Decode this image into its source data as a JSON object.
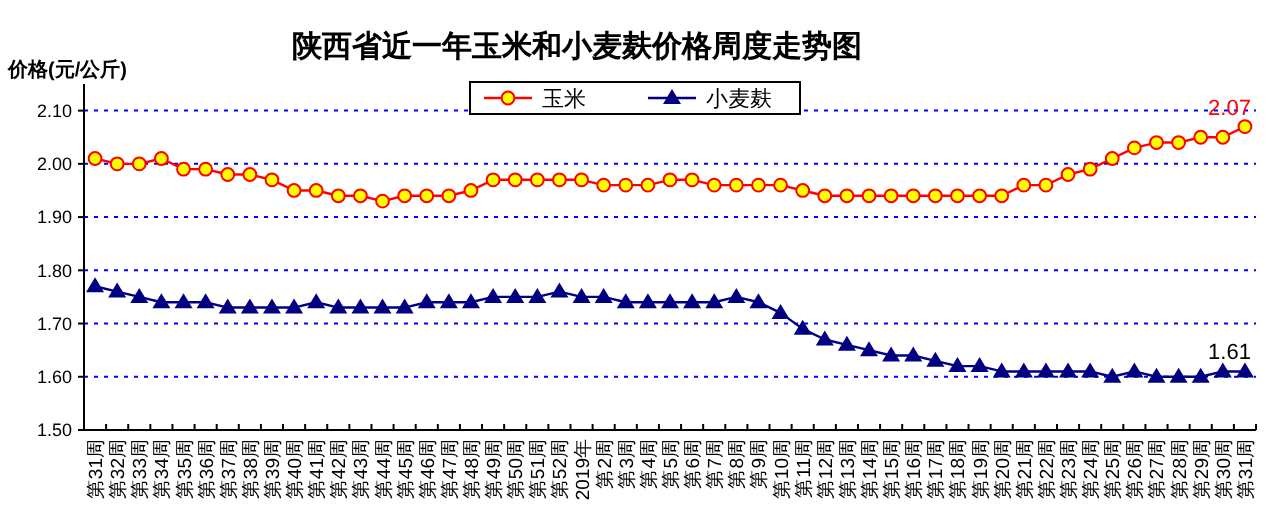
{
  "chart_data": {
    "type": "line",
    "title": "陕西省近一年玉米和小麦麸价格周度走势图",
    "ylabel": "价格(元/公斤)",
    "categories": [
      "第31周",
      "第32周",
      "第33周",
      "第34周",
      "第35周",
      "第36周",
      "第37周",
      "第38周",
      "第39周",
      "第40周",
      "第41周",
      "第42周",
      "第43周",
      "第44周",
      "第45周",
      "第46周",
      "第47周",
      "第48周",
      "第49周",
      "第50周",
      "第51周",
      "第52周",
      "2019年",
      "第2周",
      "第3周",
      "第4周",
      "第5周",
      "第6周",
      "第7周",
      "第8周",
      "第9周",
      "第10周",
      "第11周",
      "第12周",
      "第13周",
      "第14周",
      "第15周",
      "第16周",
      "第17周",
      "第18周",
      "第19周",
      "第20周",
      "第21周",
      "第22周",
      "第23周",
      "第24周",
      "第25周",
      "第26周",
      "第27周",
      "第28周",
      "第29周",
      "第30周",
      "第31周"
    ],
    "series": [
      {
        "name": "玉米",
        "color": "#ff0000",
        "marker": "circle",
        "values": [
          2.01,
          2.0,
          2.0,
          2.01,
          1.99,
          1.99,
          1.98,
          1.98,
          1.97,
          1.95,
          1.95,
          1.94,
          1.94,
          1.93,
          1.94,
          1.94,
          1.94,
          1.95,
          1.97,
          1.97,
          1.97,
          1.97,
          1.97,
          1.96,
          1.96,
          1.96,
          1.97,
          1.97,
          1.96,
          1.96,
          1.96,
          1.96,
          1.95,
          1.94,
          1.94,
          1.94,
          1.94,
          1.94,
          1.94,
          1.94,
          1.94,
          1.94,
          1.96,
          1.96,
          1.98,
          1.99,
          2.01,
          2.03,
          2.04,
          2.04,
          2.05,
          2.05,
          2.07
        ],
        "value_labels": [
          null,
          null,
          null,
          null,
          null,
          null,
          null,
          null,
          null,
          null,
          null,
          null,
          null,
          null,
          null,
          null,
          null,
          null,
          null,
          null,
          null,
          null,
          null,
          null,
          null,
          null,
          null,
          null,
          null,
          null,
          null,
          null,
          null,
          null,
          null,
          null,
          null,
          null,
          null,
          null,
          null,
          null,
          null,
          null,
          null,
          null,
          null,
          null,
          null,
          null,
          null,
          null,
          "2.07"
        ]
      },
      {
        "name": "小麦麸",
        "color": "#000080",
        "marker": "triangle",
        "values": [
          1.77,
          1.76,
          1.75,
          1.74,
          1.74,
          1.74,
          1.73,
          1.73,
          1.73,
          1.73,
          1.74,
          1.73,
          1.73,
          1.73,
          1.73,
          1.74,
          1.74,
          1.74,
          1.75,
          1.75,
          1.75,
          1.76,
          1.75,
          1.75,
          1.74,
          1.74,
          1.74,
          1.74,
          1.74,
          1.75,
          1.74,
          1.72,
          1.69,
          1.67,
          1.66,
          1.65,
          1.64,
          1.64,
          1.63,
          1.62,
          1.62,
          1.61,
          1.61,
          1.61,
          1.61,
          1.61,
          1.6,
          1.61,
          1.6,
          1.6,
          1.6,
          1.61,
          1.61
        ],
        "value_labels": [
          null,
          null,
          null,
          null,
          null,
          null,
          null,
          null,
          null,
          null,
          null,
          null,
          null,
          null,
          null,
          null,
          null,
          null,
          null,
          null,
          null,
          null,
          null,
          null,
          null,
          null,
          null,
          null,
          null,
          null,
          null,
          null,
          null,
          null,
          null,
          null,
          null,
          null,
          null,
          null,
          null,
          null,
          null,
          null,
          null,
          null,
          null,
          null,
          null,
          null,
          null,
          null,
          "1.61"
        ]
      }
    ],
    "ylim": [
      1.5,
      2.15
    ],
    "yticks": [
      {
        "value": 1.5,
        "label": "1.50"
      },
      {
        "value": 1.6,
        "label": "1.60"
      },
      {
        "value": 1.7,
        "label": "1.70"
      },
      {
        "value": 1.8,
        "label": "1.80"
      },
      {
        "value": 1.9,
        "label": "1.90"
      },
      {
        "value": 2.0,
        "label": "2.00"
      },
      {
        "value": 2.1,
        "label": "2.10"
      }
    ],
    "grid": "y",
    "legend": "top",
    "line_style": "solid"
  }
}
